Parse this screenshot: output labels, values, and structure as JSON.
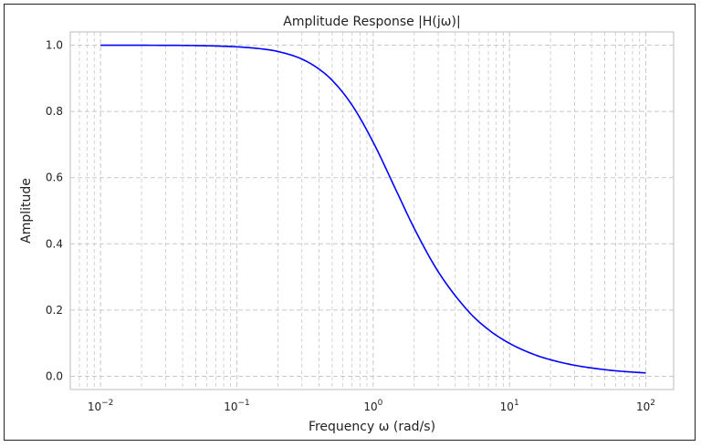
{
  "chart_data": {
    "type": "line",
    "title": "Amplitude Response |H(jω)|",
    "xlabel": "Frequency ω (rad/s)",
    "ylabel": "Amplitude",
    "xscale": "log",
    "xlim": [
      0.006,
      160
    ],
    "ylim": [
      -0.04,
      1.04
    ],
    "grid": true,
    "grid_style": "dashed",
    "x_ticks": [
      {
        "value": 0.01,
        "base": "10",
        "exp": "−2"
      },
      {
        "value": 0.1,
        "base": "10",
        "exp": "−1"
      },
      {
        "value": 1,
        "base": "10",
        "exp": "0"
      },
      {
        "value": 10,
        "base": "10",
        "exp": "1"
      },
      {
        "value": 100,
        "base": "10",
        "exp": "2"
      }
    ],
    "y_ticks": [
      "0.0",
      "0.2",
      "0.4",
      "0.6",
      "0.8",
      "1.0"
    ],
    "line_color": "#0000ff",
    "series": [
      {
        "x": [
          0.01,
          0.02,
          0.05,
          0.1,
          0.15,
          0.2,
          0.3,
          0.4,
          0.5,
          0.7,
          1.0,
          1.5,
          2.0,
          3.0,
          5.0,
          7.0,
          10,
          15,
          20,
          30,
          50,
          70,
          100
        ],
        "y": [
          1.0,
          0.9998,
          0.9988,
          0.995,
          0.989,
          0.981,
          0.958,
          0.928,
          0.894,
          0.819,
          0.707,
          0.555,
          0.447,
          0.316,
          0.196,
          0.141,
          0.0995,
          0.0665,
          0.05,
          0.0333,
          0.02,
          0.0143,
          0.01
        ]
      }
    ]
  }
}
